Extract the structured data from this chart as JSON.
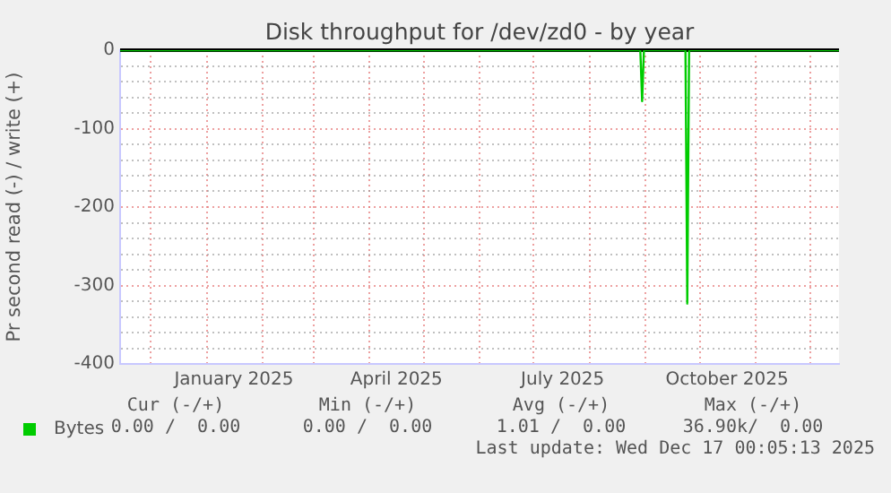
{
  "chart_data": {
    "type": "line",
    "title": "Disk throughput for /dev/zd0 - by year",
    "ylabel": "Pr second read (-) / write (+)",
    "x": [
      "2024-11-14",
      "2025-08-29",
      "2025-08-30",
      "2025-08-31",
      "2025-09-23",
      "2025-09-24",
      "2025-09-25",
      "2025-12-17"
    ],
    "series": [
      {
        "name": "Bytes",
        "color": "#00cc00",
        "values": [
          0,
          0,
          -65,
          0,
          0,
          -323,
          0,
          0
        ]
      }
    ],
    "xlim": [
      "2024-11-14",
      "2025-12-17"
    ],
    "xticks": [
      {
        "value": "2024-12-01",
        "label": null
      },
      {
        "value": "2025-01-01",
        "label": null
      },
      {
        "value": "2025-01-16",
        "label": "January 2025"
      },
      {
        "value": "2025-02-01",
        "label": null
      },
      {
        "value": "2025-03-01",
        "label": null
      },
      {
        "value": "2025-04-01",
        "label": null
      },
      {
        "value": "2025-04-16",
        "label": "April 2025"
      },
      {
        "value": "2025-05-01",
        "label": null
      },
      {
        "value": "2025-06-01",
        "label": null
      },
      {
        "value": "2025-07-01",
        "label": null
      },
      {
        "value": "2025-07-17",
        "label": "July 2025"
      },
      {
        "value": "2025-08-01",
        "label": null
      },
      {
        "value": "2025-09-01",
        "label": null
      },
      {
        "value": "2025-10-01",
        "label": null
      },
      {
        "value": "2025-10-16",
        "label": "October 2025"
      },
      {
        "value": "2025-11-01",
        "label": null
      },
      {
        "value": "2025-12-01",
        "label": null
      }
    ],
    "ylim": [
      -400,
      0
    ],
    "yticks": [
      -400,
      {
        "value": -380,
        "label": null
      },
      {
        "value": -360,
        "label": null
      },
      {
        "value": -340,
        "label": null
      },
      {
        "value": -320,
        "label": null
      },
      -300,
      {
        "value": -280,
        "label": null
      },
      {
        "value": -260,
        "label": null
      },
      {
        "value": -240,
        "label": null
      },
      {
        "value": -220,
        "label": null
      },
      -200,
      {
        "value": -180,
        "label": null
      },
      {
        "value": -160,
        "label": null
      },
      {
        "value": -140,
        "label": null
      },
      {
        "value": -120,
        "label": null
      },
      -100,
      {
        "value": -80,
        "label": null
      },
      {
        "value": -60,
        "label": null
      },
      {
        "value": -40,
        "label": null
      },
      {
        "value": -20,
        "label": null
      },
      0
    ],
    "ref_lines": [
      {
        "axis": "y",
        "value": 0,
        "color": "#000000"
      }
    ],
    "grid": true,
    "legend": "bottom",
    "marker": "none",
    "line_style": "solid",
    "annotations": [
      "Cur (-/+)",
      "Min (-/+)",
      "Avg (-/+)",
      "Max (-/+)",
      "0.00 /  0.00",
      "0.00 /  0.00",
      "1.01 /  0.00",
      "36.90k/  0.00",
      "Last update: Wed Dec 17 00:05:13 2025"
    ]
  }
}
